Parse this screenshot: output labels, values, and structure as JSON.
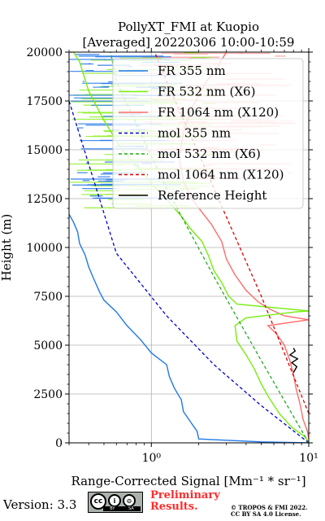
{
  "chart_data": {
    "type": "line",
    "title": [
      "PollyXT_FMI at Kuopio",
      "[Averaged] 20220306 10:00-10:59"
    ],
    "xlabel": "Range-Corrected Signal [Mm⁻¹ * sr⁻¹]",
    "ylabel": "Height (m)",
    "xscale": "log",
    "xlim": [
      0.3,
      10
    ],
    "ylim": [
      0,
      20000
    ],
    "xticks": [
      {
        "value": 1,
        "label": "10⁰"
      },
      {
        "value": 10,
        "label": "10¹"
      }
    ],
    "yticks": [
      0,
      2500,
      5000,
      7500,
      10000,
      12500,
      15000,
      17500,
      20000
    ],
    "ytick_labels": [
      "0",
      "2500",
      "5000",
      "7500",
      "10000",
      "12500",
      "15000",
      "17500",
      "20000"
    ],
    "grid": true,
    "legend_position": "top-right",
    "series": [
      {
        "name": "FR 355 nm",
        "color": "#1f78e6",
        "style": "solid",
        "points": [
          [
            10,
            0
          ],
          [
            5,
            50
          ],
          [
            2.0,
            200
          ],
          [
            1.95,
            600
          ],
          [
            1.8,
            1000
          ],
          [
            1.6,
            1600
          ],
          [
            1.55,
            2200
          ],
          [
            1.4,
            2800
          ],
          [
            1.3,
            3400
          ],
          [
            1.25,
            4000
          ],
          [
            1.0,
            4600
          ],
          [
            0.85,
            5300
          ],
          [
            0.7,
            6000
          ],
          [
            0.6,
            6700
          ],
          [
            0.5,
            7300
          ],
          [
            0.47,
            7700
          ],
          [
            0.43,
            8400
          ],
          [
            0.4,
            9000
          ],
          [
            0.38,
            9600
          ],
          [
            0.35,
            10200
          ],
          [
            0.34,
            10800
          ],
          [
            0.32,
            11300
          ],
          [
            0.3,
            11700
          ]
        ]
      },
      {
        "name": "FR 532 nm (X6)",
        "color": "#77ee11",
        "style": "solid",
        "points": [
          [
            10,
            0
          ],
          [
            9.5,
            300
          ],
          [
            7.8,
            800
          ],
          [
            6.5,
            1500
          ],
          [
            5.6,
            2300
          ],
          [
            5.0,
            3000
          ],
          [
            4.5,
            3800
          ],
          [
            4.0,
            4500
          ],
          [
            3.5,
            5200
          ],
          [
            3.4,
            6000
          ],
          [
            4.0,
            6400
          ],
          [
            8.2,
            6700
          ],
          [
            10,
            6750
          ],
          [
            3.5,
            7100
          ],
          [
            3.1,
            7500
          ],
          [
            2.8,
            8200
          ],
          [
            2.5,
            8800
          ],
          [
            2.3,
            9600
          ],
          [
            2.1,
            10300
          ],
          [
            1.8,
            10900
          ],
          [
            1.55,
            11600
          ],
          [
            1.3,
            12300
          ],
          [
            1.05,
            13100
          ],
          [
            0.85,
            14000
          ],
          [
            0.65,
            15000
          ],
          [
            0.5,
            16500
          ],
          [
            0.4,
            18000
          ],
          [
            0.35,
            19500
          ],
          [
            0.32,
            20000
          ]
        ]
      },
      {
        "name": "FR 1064 nm (X120)",
        "color": "#ff6b6b",
        "style": "solid",
        "points": [
          [
            10,
            200
          ],
          [
            9.8,
            600
          ],
          [
            9.2,
            1200
          ],
          [
            8.8,
            2000
          ],
          [
            8.3,
            2800
          ],
          [
            8.0,
            3500
          ],
          [
            7.6,
            4200
          ],
          [
            7.0,
            5000
          ],
          [
            6.2,
            5600
          ],
          [
            5.5,
            6000
          ],
          [
            10,
            6300
          ],
          [
            7.0,
            6500
          ],
          [
            5.8,
            6800
          ],
          [
            4.8,
            7200
          ],
          [
            4.0,
            7800
          ],
          [
            3.4,
            8600
          ],
          [
            3.0,
            9400
          ],
          [
            2.8,
            10300
          ],
          [
            2.4,
            11200
          ],
          [
            2.1,
            11800
          ],
          [
            1.8,
            12500
          ],
          [
            1.6,
            13400
          ],
          [
            1.5,
            14600
          ],
          [
            1.6,
            15900
          ],
          [
            1.8,
            17100
          ],
          [
            2.2,
            18400
          ],
          [
            2.6,
            19200
          ],
          [
            3.0,
            20000
          ]
        ]
      },
      {
        "name": "mol 355 nm",
        "color": "#0000cc",
        "style": "dashed",
        "points": [
          [
            10,
            0
          ],
          [
            5.0,
            1900
          ],
          [
            2.5,
            4000
          ],
          [
            1.25,
            6500
          ],
          [
            0.6,
            9700
          ],
          [
            0.3,
            17500
          ]
        ]
      },
      {
        "name": "mol 532 nm (X6)",
        "color": "#22aa22",
        "style": "dashed",
        "points": [
          [
            10,
            0
          ],
          [
            5.0,
            4200
          ],
          [
            2.5,
            8500
          ],
          [
            1.25,
            13000
          ],
          [
            0.6,
            18500
          ],
          [
            0.55,
            20000
          ]
        ]
      },
      {
        "name": "mol 1064 nm (X120)",
        "color": "#dd0000",
        "style": "dashed",
        "points": [
          [
            10,
            1500
          ],
          [
            5.0,
            7500
          ],
          [
            2.5,
            13000
          ],
          [
            1.25,
            18500
          ],
          [
            1.05,
            20000
          ]
        ]
      },
      {
        "name": "Reference Height",
        "color": "#000000",
        "style": "solid",
        "points": [
          [
            8.0,
            3600
          ],
          [
            8.4,
            3900
          ],
          [
            7.8,
            4100
          ],
          [
            8.5,
            4300
          ],
          [
            7.6,
            4500
          ],
          [
            8.2,
            4700
          ],
          [
            8.0,
            4850
          ]
        ]
      }
    ]
  },
  "footer": {
    "version": "Version: 3.3",
    "preliminary": [
      "Preliminary",
      "Results."
    ],
    "copyright": [
      "© TROPOS & FMI 2022.",
      "CC BY SA 4.0 License."
    ],
    "cc_badge": {
      "main": "cc",
      "icons": [
        "i",
        "⊝"
      ],
      "strip": [
        "BY",
        "SA"
      ]
    }
  }
}
